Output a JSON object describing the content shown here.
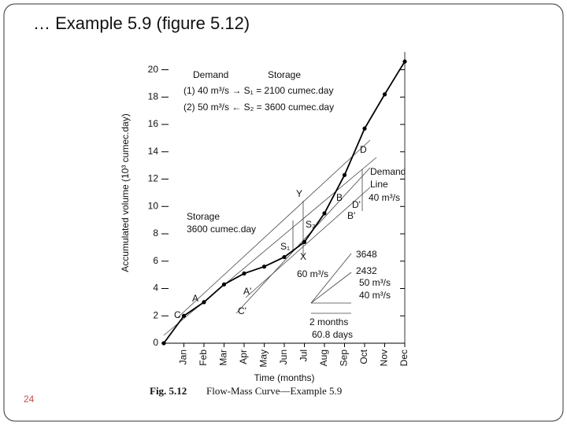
{
  "slide": {
    "title": "… Example 5.9 (figure 5.12)",
    "page_number": "24"
  },
  "chart_data": {
    "type": "line",
    "x": [
      0,
      1,
      2,
      3,
      4,
      5,
      6,
      7,
      8,
      9,
      10,
      11,
      12
    ],
    "xlim": [
      0,
      12
    ],
    "xticks": [
      {
        "value": 1,
        "label": "Jan"
      },
      {
        "value": 2,
        "label": "Feb"
      },
      {
        "value": 3,
        "label": "Mar"
      },
      {
        "value": 4,
        "label": "Apr"
      },
      {
        "value": 5,
        "label": "May"
      },
      {
        "value": 6,
        "label": "Jun"
      },
      {
        "value": 7,
        "label": "Jul"
      },
      {
        "value": 8,
        "label": "Aug"
      },
      {
        "value": 9,
        "label": "Sep"
      },
      {
        "value": 10,
        "label": "Oct"
      },
      {
        "value": 11,
        "label": "Nov"
      },
      {
        "value": 12,
        "label": "Dec"
      }
    ],
    "ylim": [
      0,
      21.3
    ],
    "yticks": [
      0,
      2,
      4,
      6,
      8,
      10,
      12,
      14,
      16,
      18,
      20
    ],
    "x_label": "Time (months)",
    "y_label": "Accumulated volume (10³ cumec.day)",
    "series": [
      {
        "color": "#000000",
        "values": [
          0,
          2.0,
          3.0,
          4.3,
          5.1,
          5.6,
          6.3,
          7.4,
          9.5,
          12.3,
          15.7,
          18.2,
          20.6
        ]
      }
    ],
    "caption_label": "Fig. 5.12",
    "caption": "Flow-Mass Curve—Example 5.9",
    "annotations": [
      "Demand",
      "Storage",
      "(1) 40 m³/s → S₁ = 2100 cumec.day",
      "(2) 50 m³/s ← S₂ = 3600 cumec.day",
      "D",
      "Demand",
      "Line",
      "40 m³/s",
      "Y",
      "B",
      "D'",
      "B'",
      "Storage",
      "3600 cumec.day",
      "S₂",
      "S₁",
      "X",
      "60 m³/s",
      "3648",
      "2432",
      "50 m³/s",
      "40 m³/s",
      "A",
      "A'",
      "C",
      "C'",
      "2 months",
      "60.8 days"
    ]
  }
}
